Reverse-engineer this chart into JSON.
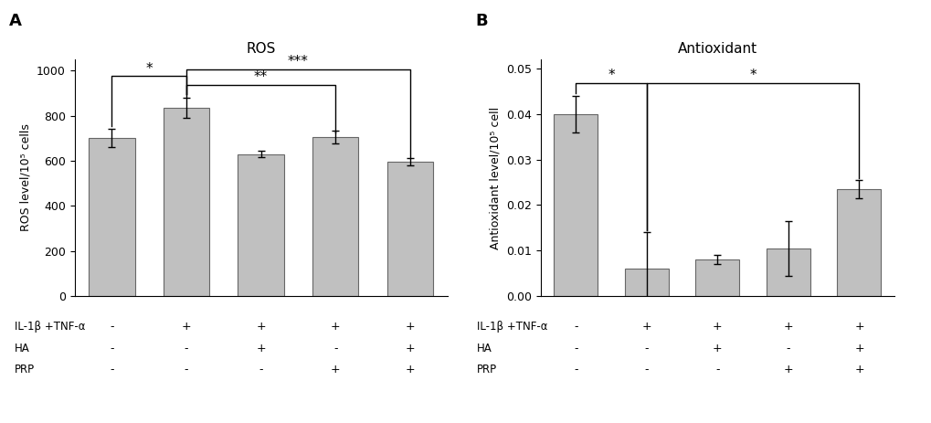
{
  "ros_values": [
    700,
    835,
    630,
    705,
    595
  ],
  "ros_errors": [
    40,
    45,
    15,
    30,
    15
  ],
  "antioxidant_values": [
    0.04,
    0.006,
    0.008,
    0.0105,
    0.0235
  ],
  "antioxidant_errors": [
    0.004,
    0.008,
    0.001,
    0.006,
    0.002
  ],
  "bar_color": "#c0c0c0",
  "bar_edgecolor": "#666666",
  "categories_labels": [
    [
      "-",
      "+",
      "+",
      "+",
      "+"
    ],
    [
      "-",
      "-",
      "+",
      "-",
      "+"
    ],
    [
      "-",
      "-",
      "-",
      "+",
      "+"
    ]
  ],
  "row_labels": [
    "IL-1β +TNF-α",
    "HA",
    "PRP"
  ],
  "title_A": "ROS",
  "title_B": "Antioxidant",
  "ylabel_A": "ROS level/10⁵ cells",
  "ylabel_B": "Antioxidant level/10⁵ cell",
  "ylim_A": [
    0,
    1050
  ],
  "ylim_B": [
    0,
    0.052
  ],
  "yticks_A": [
    0,
    200,
    400,
    600,
    800,
    1000
  ],
  "yticks_B": [
    0.0,
    0.01,
    0.02,
    0.03,
    0.04,
    0.05
  ],
  "background_color": "#ffffff"
}
